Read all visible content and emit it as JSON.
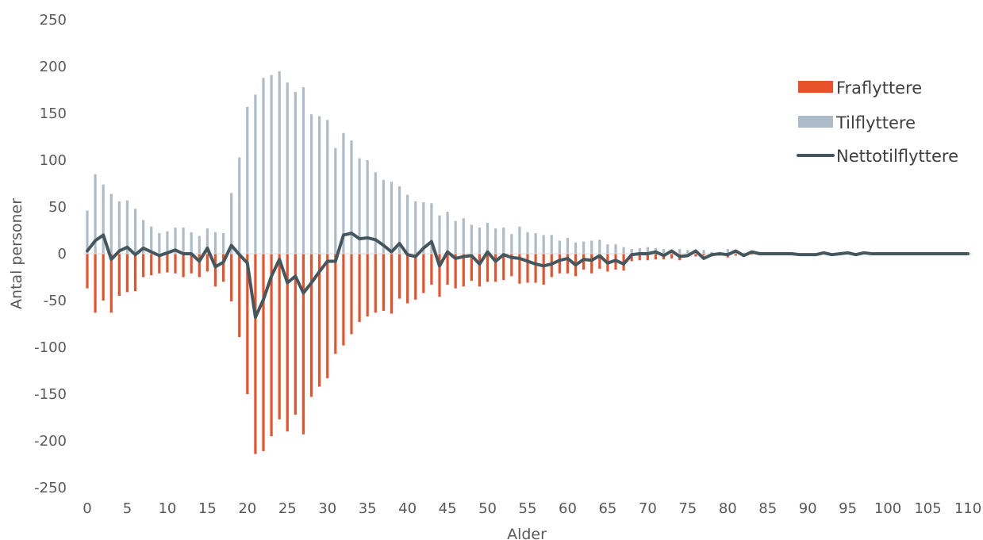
{
  "chart_data": {
    "type": "bar",
    "xlabel": "Alder",
    "ylabel": "Antal personer",
    "ylim": [
      -250,
      250
    ],
    "yticks": [
      250,
      200,
      150,
      100,
      50,
      0,
      -50,
      -100,
      -150,
      -200,
      -250
    ],
    "xticks": [
      0,
      5,
      10,
      15,
      20,
      25,
      30,
      35,
      40,
      45,
      50,
      55,
      60,
      65,
      70,
      75,
      80,
      85,
      90,
      95,
      100,
      105,
      110
    ],
    "grid": false,
    "legend_position": "top-right",
    "x": [
      0,
      1,
      2,
      3,
      4,
      5,
      6,
      7,
      8,
      9,
      10,
      11,
      12,
      13,
      14,
      15,
      16,
      17,
      18,
      19,
      20,
      21,
      22,
      23,
      24,
      25,
      26,
      27,
      28,
      29,
      30,
      31,
      32,
      33,
      34,
      35,
      36,
      37,
      38,
      39,
      40,
      41,
      42,
      43,
      44,
      45,
      46,
      47,
      48,
      49,
      50,
      51,
      52,
      53,
      54,
      55,
      56,
      57,
      58,
      59,
      60,
      61,
      62,
      63,
      64,
      65,
      66,
      67,
      68,
      69,
      70,
      71,
      72,
      73,
      74,
      75,
      76,
      77,
      78,
      79,
      80,
      81,
      82,
      83,
      84,
      85,
      86,
      87,
      88,
      89,
      90,
      91,
      92,
      93,
      94,
      95,
      96,
      97,
      98,
      99,
      100,
      101,
      102,
      103,
      104,
      105,
      106,
      107,
      108,
      109,
      110
    ],
    "series": [
      {
        "name": "Fraflyttere",
        "type": "bar",
        "color": "#E8522B",
        "values": [
          -37,
          -63,
          -50,
          -63,
          -45,
          -41,
          -40,
          -25,
          -23,
          -21,
          -20,
          -21,
          -25,
          -21,
          -25,
          -19,
          -35,
          -30,
          -51,
          -89,
          -150,
          -214,
          -211,
          -195,
          -177,
          -190,
          -172,
          -193,
          -153,
          -142,
          -133,
          -107,
          -98,
          -86,
          -73,
          -67,
          -63,
          -61,
          -64,
          -48,
          -53,
          -49,
          -42,
          -33,
          -46,
          -33,
          -37,
          -35,
          -29,
          -35,
          -30,
          -30,
          -28,
          -24,
          -32,
          -31,
          -31,
          -33,
          -25,
          -21,
          -21,
          -24,
          -17,
          -21,
          -16,
          -19,
          -17,
          -18,
          -8,
          -7,
          -7,
          -6,
          -6,
          -5,
          -7,
          -3,
          -3,
          -2,
          -3,
          -2,
          -4,
          -2,
          -1,
          -1,
          -1,
          -1,
          -1,
          0,
          0,
          0,
          0,
          0,
          0,
          0,
          0,
          0,
          0,
          0,
          0,
          0,
          0,
          0,
          0,
          0,
          0,
          0,
          0,
          0,
          0,
          0,
          0
        ]
      },
      {
        "name": "Tilflyttere",
        "type": "bar",
        "color": "#ADBCC9",
        "values": [
          46,
          85,
          74,
          64,
          56,
          57,
          48,
          36,
          29,
          22,
          24,
          28,
          28,
          23,
          19,
          27,
          23,
          22,
          65,
          103,
          157,
          170,
          188,
          191,
          195,
          183,
          173,
          178,
          149,
          147,
          143,
          113,
          129,
          121,
          102,
          100,
          87,
          79,
          77,
          72,
          63,
          56,
          55,
          54,
          41,
          45,
          35,
          38,
          31,
          28,
          33,
          27,
          28,
          21,
          29,
          23,
          22,
          20,
          20,
          14,
          17,
          12,
          13,
          14,
          15,
          10,
          10,
          7,
          5,
          6,
          7,
          6,
          5,
          4,
          5,
          4,
          3,
          4,
          2,
          2,
          5,
          3,
          1,
          1,
          2,
          1,
          1,
          0,
          0,
          0,
          0,
          0,
          0,
          0,
          0,
          0,
          0,
          0,
          0,
          0,
          0,
          0,
          0,
          0,
          0,
          0,
          0,
          0,
          0,
          0,
          0
        ]
      },
      {
        "name": "Nettotilflyttere",
        "type": "line",
        "color": "#44575F",
        "values": [
          3,
          14,
          20,
          -6,
          3,
          7,
          -1,
          6,
          2,
          -2,
          1,
          4,
          0,
          0,
          -8,
          6,
          -14,
          -9,
          9,
          -1,
          -10,
          -68,
          -49,
          -24,
          -6,
          -31,
          -24,
          -42,
          -31,
          -19,
          -8,
          -8,
          20,
          22,
          16,
          17,
          15,
          9,
          2,
          11,
          -1,
          -3,
          6,
          13,
          -13,
          2,
          -5,
          -3,
          -2,
          -11,
          2,
          -8,
          -1,
          -4,
          -5,
          -8,
          -11,
          -13,
          -11,
          -7,
          -5,
          -12,
          -6,
          -7,
          -2,
          -10,
          -7,
          -11,
          -1,
          0,
          0,
          2,
          -2,
          3,
          -3,
          -2,
          3,
          -5,
          -1,
          0,
          -1,
          3,
          -2,
          2,
          0,
          0,
          0,
          0,
          0,
          -1,
          -1,
          -1,
          1,
          -1,
          0,
          1,
          -1,
          1,
          0,
          0,
          0,
          0,
          0,
          0,
          0,
          0,
          0,
          0,
          0,
          0,
          0
        ]
      }
    ]
  }
}
